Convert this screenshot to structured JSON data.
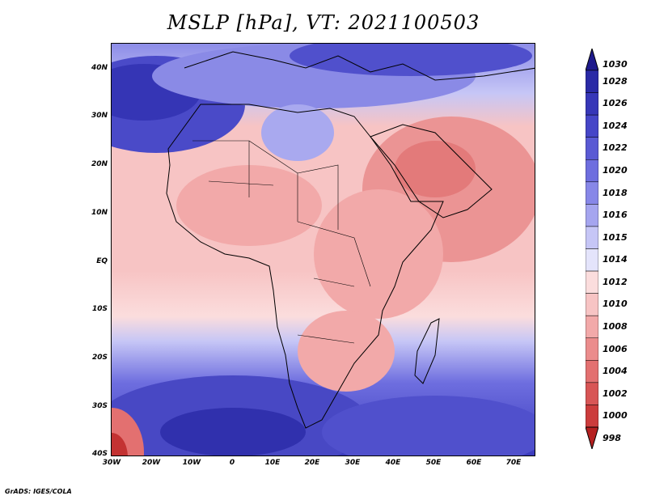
{
  "title": "MSLP [hPa], VT: 2021100503",
  "credit": "GrADS: IGES/COLA",
  "y_axis": {
    "labels": [
      "40N",
      "30N",
      "20N",
      "10N",
      "EQ",
      "10S",
      "20S",
      "30S",
      "40S"
    ]
  },
  "x_axis": {
    "labels": [
      "30W",
      "20W",
      "10W",
      "0",
      "10E",
      "20E",
      "30E",
      "40E",
      "50E",
      "60E",
      "70E"
    ]
  },
  "colorbar": {
    "levels": [
      {
        "label": "1030",
        "color": "#1e1a8c"
      },
      {
        "label": "1028",
        "color": "#2a2aa6"
      },
      {
        "label": "1026",
        "color": "#3737b8"
      },
      {
        "label": "1024",
        "color": "#4646c8"
      },
      {
        "label": "1022",
        "color": "#5a5ad4"
      },
      {
        "label": "1020",
        "color": "#6e6edf"
      },
      {
        "label": "1018",
        "color": "#8787e8"
      },
      {
        "label": "1016",
        "color": "#a5a5ef"
      },
      {
        "label": "1015",
        "color": "#c6c6f6"
      },
      {
        "label": "1014",
        "color": "#e4e4fb"
      },
      {
        "label": "1012",
        "color": "#fbdddd"
      },
      {
        "label": "1010",
        "color": "#f7c4c4"
      },
      {
        "label": "1008",
        "color": "#f2a9a9"
      },
      {
        "label": "1006",
        "color": "#eb8c8c"
      },
      {
        "label": "1004",
        "color": "#e37070"
      },
      {
        "label": "1002",
        "color": "#d85555"
      },
      {
        "label": "1000",
        "color": "#cc3c3c"
      },
      {
        "label": "998",
        "color": "#b52020"
      }
    ]
  }
}
